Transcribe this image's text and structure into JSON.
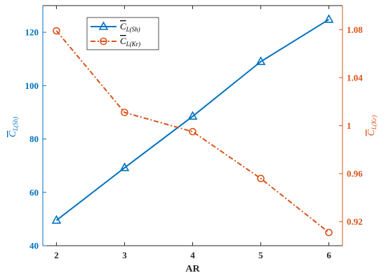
{
  "chart_data": {
    "type": "line",
    "x": [
      2,
      3,
      4,
      5,
      6
    ],
    "xlabel": "AR",
    "xlim": [
      1.8,
      6.2
    ],
    "x_ticks": [
      "2",
      "3",
      "4",
      "5",
      "6"
    ],
    "left_axis": {
      "label_base": "C",
      "label_sub": "L(Sh)",
      "ylim": [
        40,
        130
      ],
      "ticks": [
        40,
        60,
        80,
        100,
        120
      ],
      "tick_labels": [
        "40",
        "60",
        "80",
        "100",
        "120"
      ],
      "color": "#0072BD"
    },
    "right_axis": {
      "label_base": "C",
      "label_sub": "L(Kr)",
      "ylim": [
        0.9,
        1.1
      ],
      "ticks": [
        0.92,
        0.96,
        1.0,
        1.04,
        1.08
      ],
      "tick_labels": [
        "0.92",
        "0.96",
        "1",
        "1.04",
        "1.08"
      ],
      "color": "#D95319"
    },
    "series": [
      {
        "name": "C̄L(Sh)",
        "label_base": "C",
        "label_sub": "L(Sh)",
        "axis": "left",
        "values": [
          49.5,
          69.2,
          88.5,
          109,
          124.8
        ],
        "color": "#0072BD",
        "marker": "triangle",
        "line_style": "solid"
      },
      {
        "name": "C̄L(Kr)",
        "label_base": "C",
        "label_sub": "L(Kr)",
        "axis": "right",
        "values": [
          1.079,
          1.011,
          0.995,
          0.956,
          0.911
        ],
        "color": "#D95319",
        "marker": "circle",
        "line_style": "dashdot"
      }
    ],
    "legend_position": "top-left",
    "grid": false
  }
}
